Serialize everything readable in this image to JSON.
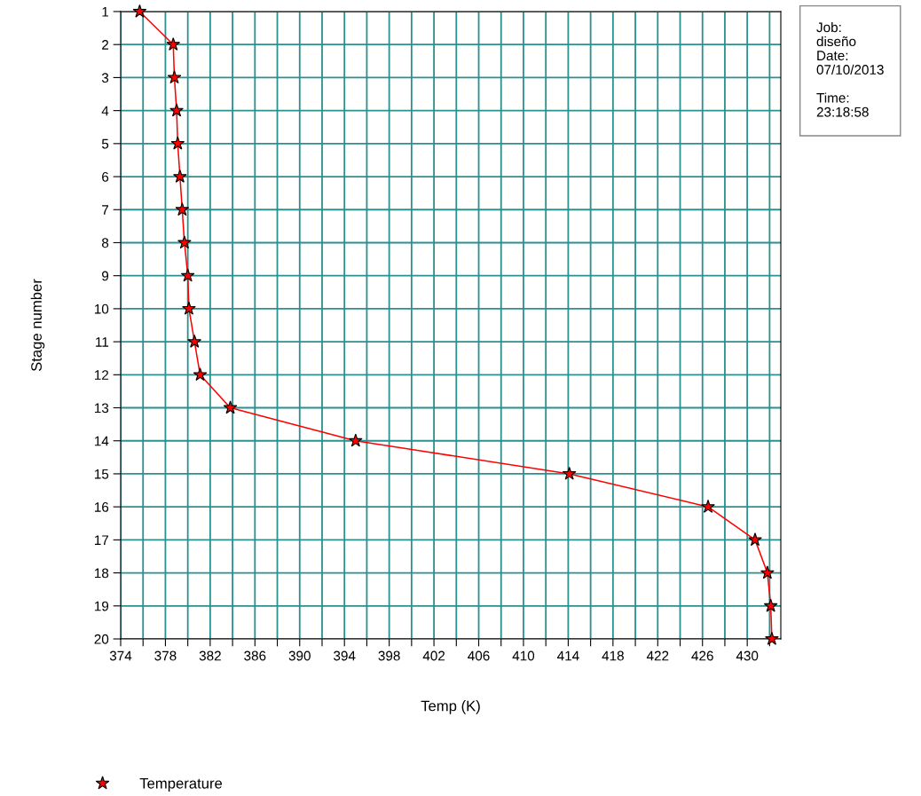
{
  "chart_data": {
    "type": "line",
    "xlabel": "Temp (K)",
    "ylabel": "Stage number",
    "orientation": "horizontal",
    "categories": [
      "1",
      "2",
      "3",
      "4",
      "5",
      "6",
      "7",
      "8",
      "9",
      "10",
      "11",
      "12",
      "13",
      "14",
      "15",
      "16",
      "17",
      "18",
      "19",
      "20"
    ],
    "series": [
      {
        "name": "Temperature",
        "color": "#ff0000",
        "values": [
          375.7,
          378.7,
          378.8,
          379.0,
          379.1,
          379.3,
          379.5,
          379.7,
          380.0,
          380.1,
          380.6,
          381.1,
          383.8,
          395.0,
          414.1,
          426.5,
          430.7,
          431.8,
          432.1,
          432.2
        ]
      }
    ],
    "xlim": [
      374,
      433
    ],
    "xticks": [
      374,
      {
        "value": 376,
        "label": null
      },
      378,
      {
        "value": 380,
        "label": null
      },
      382,
      {
        "value": 384,
        "label": null
      },
      386,
      {
        "value": 388,
        "label": null
      },
      390,
      {
        "value": 392,
        "label": null
      },
      394,
      {
        "value": 396,
        "label": null
      },
      398,
      {
        "value": 400,
        "label": null
      },
      402,
      {
        "value": 404,
        "label": null
      },
      406,
      {
        "value": 408,
        "label": null
      },
      410,
      {
        "value": 412,
        "label": null
      },
      414,
      {
        "value": 416,
        "label": null
      },
      418,
      {
        "value": 420,
        "label": null
      },
      422,
      {
        "value": 424,
        "label": null
      },
      426,
      {
        "value": 428,
        "label": null
      },
      430,
      {
        "value": 432,
        "label": null
      }
    ],
    "grid": true,
    "marker": "star",
    "line_style": "solid",
    "legend": "bottom left",
    "annotations": [
      "Job:\ndiseño\nDate:\n07/10/2013\n\nTime:\n23:18:58"
    ]
  }
}
